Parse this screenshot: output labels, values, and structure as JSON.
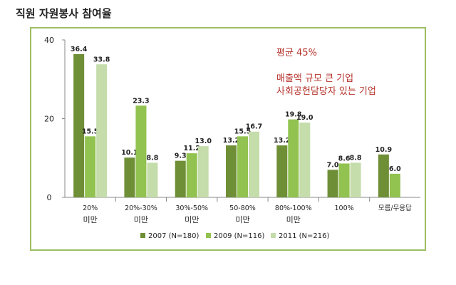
{
  "title": "직원 자원봉사 참여율",
  "annotations": [
    "평균 45%",
    "매출액 규모 큰 기업",
    "사회공헌담당자 있는 기업"
  ],
  "chart_data": {
    "type": "bar",
    "title": "",
    "xlabel": "",
    "ylabel": "",
    "ylim": [
      0,
      40
    ],
    "yticks": [
      0,
      20,
      40
    ],
    "categories": [
      [
        "20%",
        "미만"
      ],
      [
        "20%-30%",
        "미만"
      ],
      [
        "30%-50%",
        "미만"
      ],
      [
        "50-80%",
        "미만"
      ],
      [
        "80%-100%",
        "미만"
      ],
      [
        "100%"
      ],
      [
        "모름/무응답"
      ]
    ],
    "series": [
      {
        "name": "2007 (N=180)",
        "color": "#6f8f37",
        "values": [
          36.4,
          10.1,
          9.3,
          13.2,
          13.2,
          7.0,
          10.9
        ]
      },
      {
        "name": "2009 (N=116)",
        "color": "#92c24f",
        "values": [
          15.5,
          23.3,
          11.2,
          15.5,
          19.8,
          8.6,
          6.0
        ]
      },
      {
        "name": "2011 (N=216)",
        "color": "#c5dcab",
        "values": [
          33.8,
          8.8,
          13.0,
          16.7,
          19.0,
          8.8,
          null
        ]
      }
    ],
    "grid": false,
    "legend": "bottom"
  }
}
